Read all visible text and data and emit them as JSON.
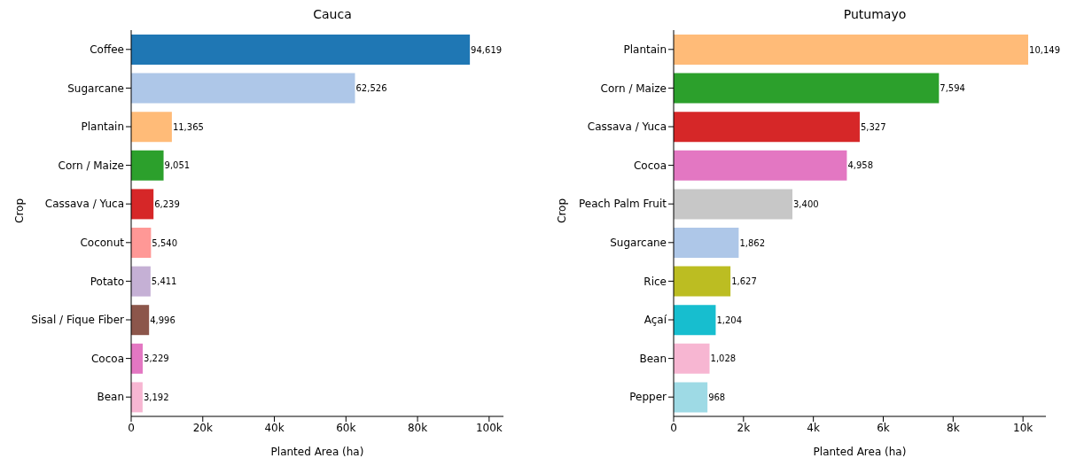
{
  "chart_data": [
    {
      "type": "bar",
      "orientation": "horizontal",
      "title": "Cauca",
      "xlabel": "Planted Area (ha)",
      "ylabel": "Crop",
      "categories": [
        "Coffee",
        "Sugarcane",
        "Plantain",
        "Corn / Maize",
        "Cassava / Yuca",
        "Coconut",
        "Potato",
        "Sisal / Fique Fiber",
        "Cocoa",
        "Bean"
      ],
      "values": [
        94619,
        62526,
        11365,
        9051,
        6239,
        5540,
        5411,
        4996,
        3229,
        3192
      ],
      "colors": [
        "#1f77b4",
        "#aec7e8",
        "#ffbb78",
        "#2ca02c",
        "#d62728",
        "#ff9896",
        "#c5b0d5",
        "#8c564b",
        "#e377c2",
        "#f7b6d2"
      ],
      "xlim": [
        0,
        104000
      ],
      "xticks": [
        0,
        {
          "value": 20000,
          "label": "20k"
        },
        {
          "value": 40000,
          "label": "40k"
        },
        {
          "value": 60000,
          "label": "60k"
        },
        {
          "value": 80000,
          "label": "80k"
        },
        {
          "value": 100000,
          "label": "100k"
        }
      ],
      "value_labels": [
        "94,619",
        "62,526",
        "11,365",
        "9,051",
        "6,239",
        "5,540",
        "5,411",
        "4,996",
        "3,229",
        "3,192"
      ]
    },
    {
      "type": "bar",
      "orientation": "horizontal",
      "title": "Putumayo",
      "xlabel": "Planted Area (ha)",
      "ylabel": "Crop",
      "categories": [
        "Plantain",
        "Corn / Maize",
        "Cassava / Yuca",
        "Cocoa",
        "Peach Palm Fruit",
        "Sugarcane",
        "Rice",
        "Açaí",
        "Bean",
        "Pepper"
      ],
      "values": [
        10149,
        7594,
        5327,
        4958,
        3400,
        1862,
        1627,
        1204,
        1028,
        968
      ],
      "colors": [
        "#ffbb78",
        "#2ca02c",
        "#d62728",
        "#e377c2",
        "#c7c7c7",
        "#aec7e8",
        "#bcbd22",
        "#17becf",
        "#f7b6d2",
        "#9edae5"
      ],
      "xlim": [
        0,
        10656
      ],
      "xticks": [
        0,
        {
          "value": 2000,
          "label": "2k"
        },
        {
          "value": 4000,
          "label": "4k"
        },
        {
          "value": 6000,
          "label": "6k"
        },
        {
          "value": 8000,
          "label": "8k"
        },
        {
          "value": 10000,
          "label": "10k"
        }
      ],
      "value_labels": [
        "10,149",
        "7,594",
        "5,327",
        "4,958",
        "3,400",
        "1,862",
        "1,627",
        "1,204",
        "1,028",
        "968"
      ]
    }
  ]
}
